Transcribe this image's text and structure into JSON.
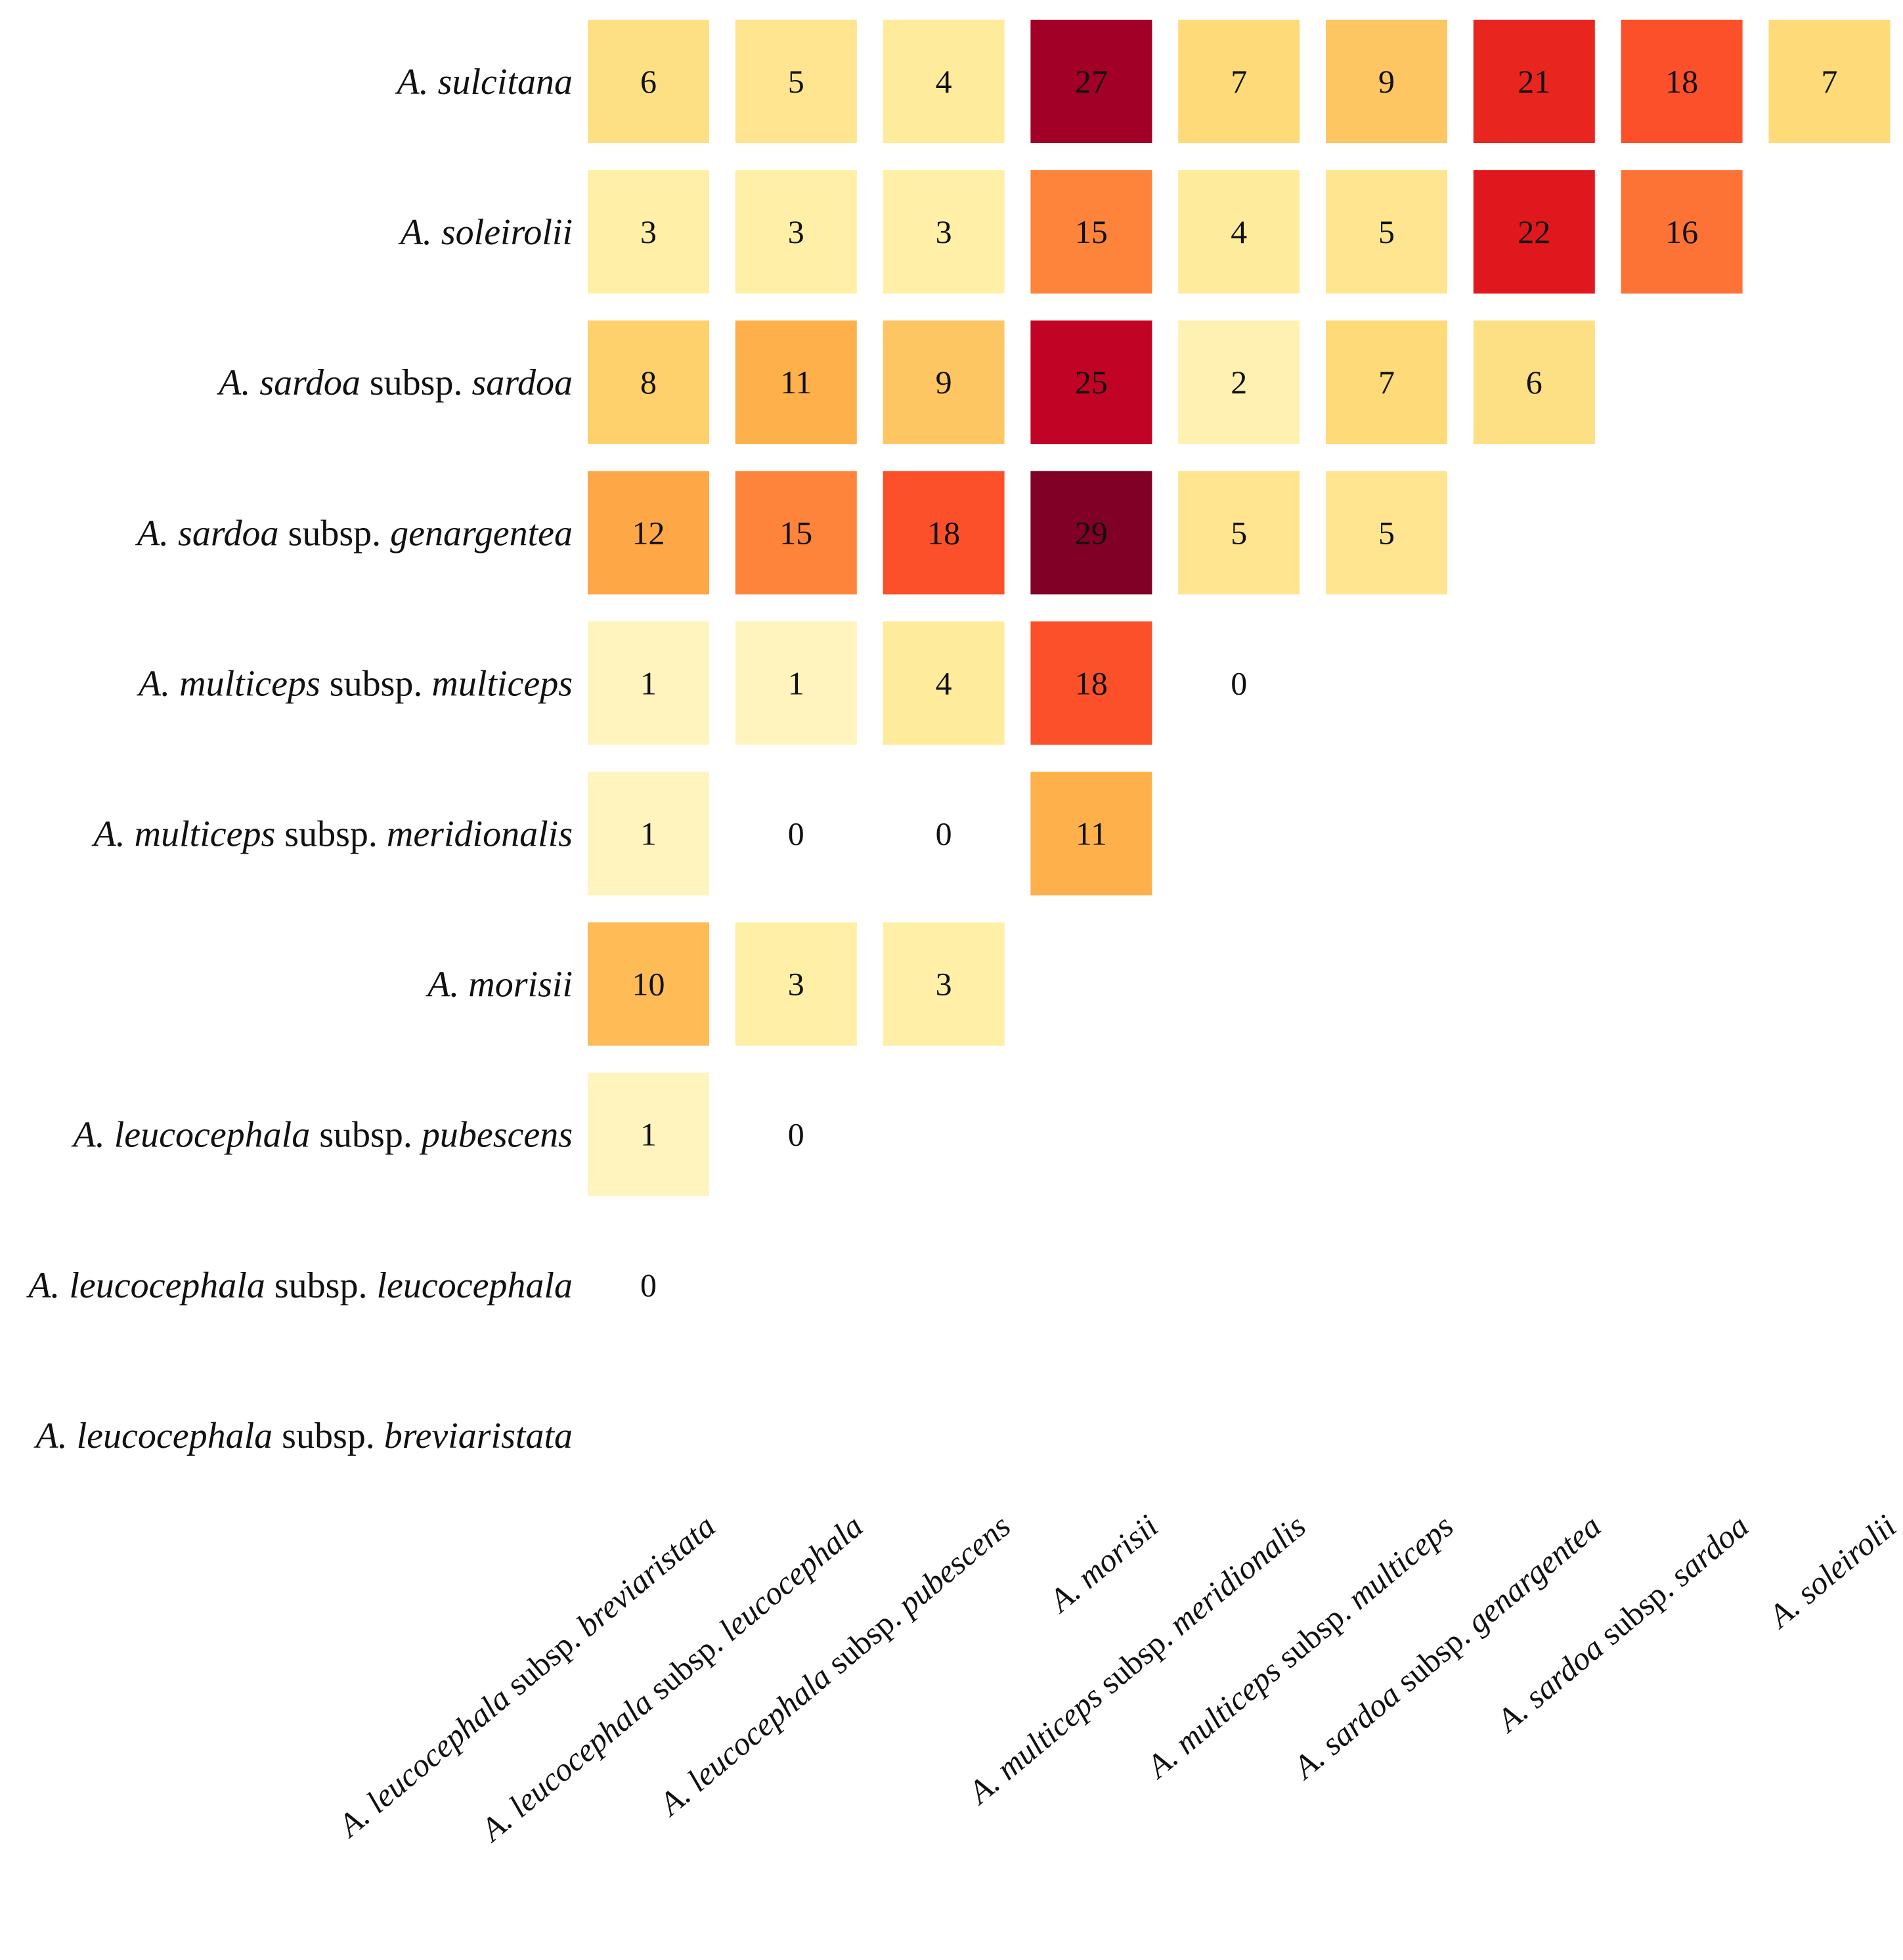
{
  "chart_data": {
    "type": "heatmap",
    "title": "",
    "xlabel": "",
    "ylabel": "",
    "rows": [
      {
        "genus": "A. ",
        "species": "sulcitana",
        "rank": "",
        "infra": ""
      },
      {
        "genus": "A. ",
        "species": "soleirolii",
        "rank": "",
        "infra": ""
      },
      {
        "genus": "A. ",
        "species": "sardoa",
        "rank": " subsp. ",
        "infra": "sardoa"
      },
      {
        "genus": "A. ",
        "species": "sardoa",
        "rank": " subsp. ",
        "infra": "genargentea"
      },
      {
        "genus": "A. ",
        "species": "multiceps",
        "rank": " subsp. ",
        "infra": "multiceps"
      },
      {
        "genus": "A. ",
        "species": "multiceps",
        "rank": " subsp.  ",
        "infra": "meridionalis"
      },
      {
        "genus": "A. ",
        "species": "morisii",
        "rank": "",
        "infra": ""
      },
      {
        "genus": "A. ",
        "species": "leucocephala",
        "rank": " subsp. ",
        "infra": "pubescens"
      },
      {
        "genus": "A. ",
        "species": "leucocephala",
        "rank": " subsp. ",
        "infra": "leucocephala"
      },
      {
        "genus": "A. ",
        "species": "leucocephala",
        "rank": " subsp. ",
        "infra": "breviaristata"
      }
    ],
    "columns": [
      {
        "genus": "A. ",
        "species": "leucocephala",
        "rank": " subsp. ",
        "infra": "breviaristata"
      },
      {
        "genus": "A. ",
        "species": "leucocephala",
        "rank": " subsp. ",
        "infra": "leucocephala"
      },
      {
        "genus": "A. ",
        "species": "leucocephala",
        "rank": " subsp. ",
        "infra": "pubescens"
      },
      {
        "genus": "A. ",
        "species": "morisii",
        "rank": "",
        "infra": ""
      },
      {
        "genus": "A. ",
        "species": "multiceps",
        "rank": " subsp.  ",
        "infra": "meridionalis"
      },
      {
        "genus": "A. ",
        "species": "multiceps",
        "rank": " subsp. ",
        "infra": "multiceps"
      },
      {
        "genus": "A. ",
        "species": "sardoa",
        "rank": " subsp. ",
        "infra": "genargentea"
      },
      {
        "genus": "A. ",
        "species": "sardoa",
        "rank": " subsp. ",
        "infra": "sardoa"
      },
      {
        "genus": "A. ",
        "species": "soleirolii",
        "rank": "",
        "infra": ""
      }
    ],
    "values": [
      [
        6,
        5,
        4,
        27,
        7,
        9,
        21,
        18,
        7
      ],
      [
        3,
        3,
        3,
        15,
        4,
        5,
        22,
        16
      ],
      [
        8,
        11,
        9,
        25,
        2,
        7,
        6
      ],
      [
        12,
        15,
        18,
        29,
        5,
        5
      ],
      [
        1,
        1,
        4,
        18,
        0
      ],
      [
        1,
        0,
        0,
        11
      ],
      [
        10,
        3,
        3
      ],
      [
        1,
        0
      ],
      [
        0
      ],
      []
    ],
    "color_scale": {
      "type": "sequential",
      "name": "YlOrRd",
      "min": 0,
      "max": 29,
      "zero_color": "#ffffff",
      "stops": [
        "#fff6c9",
        "#ffeda0",
        "#fed976",
        "#feb24c",
        "#fd8d3c",
        "#fc4e2a",
        "#e31a1c",
        "#bd0026",
        "#800026"
      ]
    },
    "legend": false,
    "grid": false
  }
}
